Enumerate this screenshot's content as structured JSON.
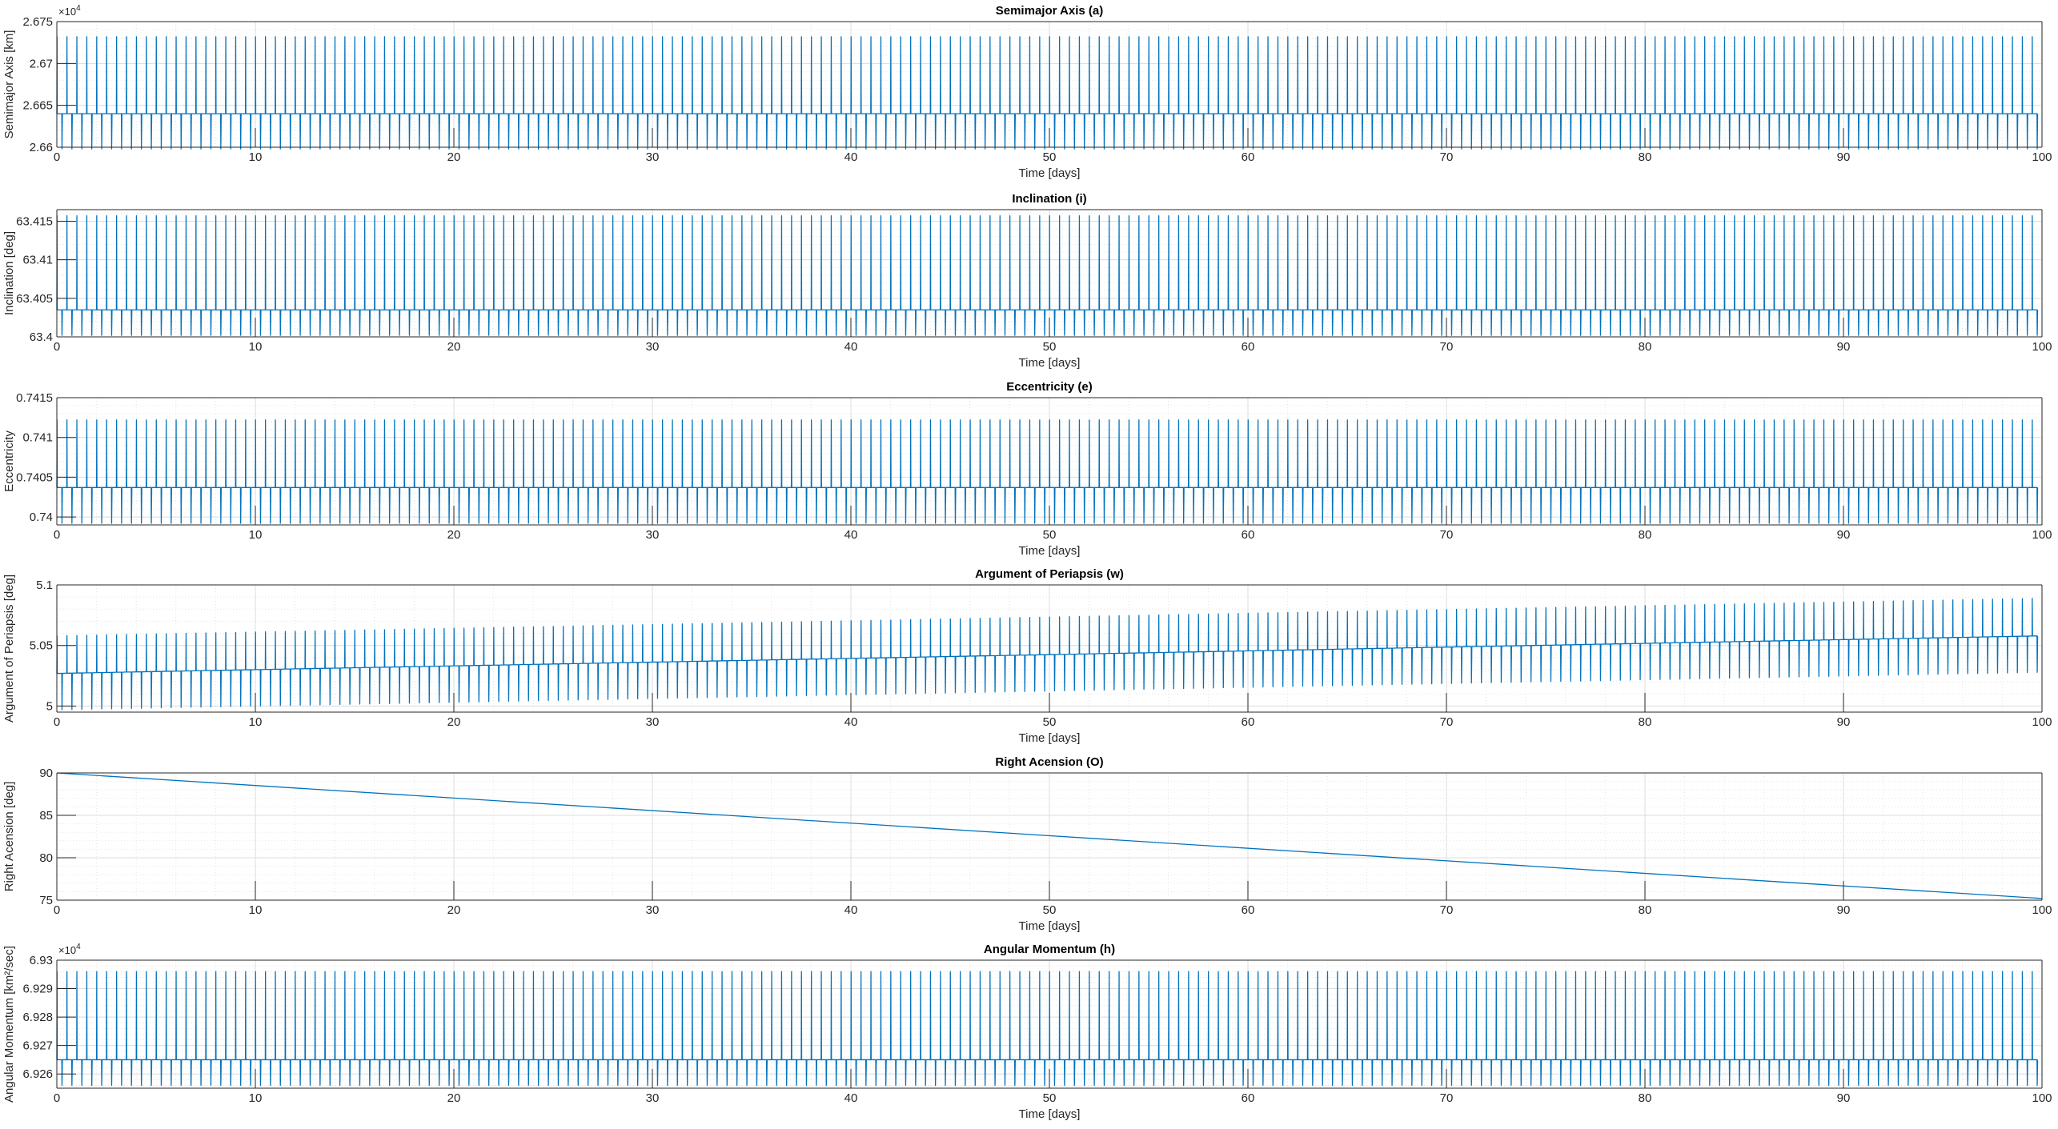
{
  "chart_data": [
    {
      "type": "line",
      "title": "Semimajor Axis (a)",
      "xlabel": "Time [days]",
      "ylabel": "Semimajor Axis [km]",
      "xlim": [
        0,
        100
      ],
      "ylim": [
        26600,
        26750
      ],
      "xticks": [
        0,
        10,
        20,
        30,
        40,
        50,
        60,
        70,
        80,
        90,
        100
      ],
      "yticks": [
        2.66,
        2.665,
        2.67,
        2.675
      ],
      "exponent": "4",
      "grid": true,
      "series": [
        {
          "color": "#0072bd",
          "pattern": "oscillation",
          "cycles": 200,
          "baseline_start": 26640,
          "baseline_end": 26640,
          "peak_start": 26732,
          "peak_end": 26732,
          "trough_start": 26598,
          "trough_end": 26598
        }
      ]
    },
    {
      "type": "line",
      "title": "Inclination (i)",
      "xlabel": "Time [days]",
      "ylabel": "Inclination [deg]",
      "xlim": [
        0,
        100
      ],
      "ylim": [
        63.4,
        63.4165
      ],
      "xticks": [
        0,
        10,
        20,
        30,
        40,
        50,
        60,
        70,
        80,
        90,
        100
      ],
      "yticks": [
        63.4,
        63.405,
        63.41,
        63.415
      ],
      "grid": true,
      "series": [
        {
          "color": "#0072bd",
          "pattern": "oscillation",
          "cycles": 200,
          "baseline_start": 63.4035,
          "baseline_end": 63.4035,
          "peak_start": 63.4157,
          "peak_end": 63.4157,
          "trough_start": 63.4002,
          "trough_end": 63.4002
        }
      ]
    },
    {
      "type": "line",
      "title": "Eccentricity (e)",
      "xlabel": "Time [days]",
      "ylabel": "Eccentricity",
      "xlim": [
        0,
        100
      ],
      "ylim": [
        0.7399,
        0.7415
      ],
      "xticks": [
        0,
        10,
        20,
        30,
        40,
        50,
        60,
        70,
        80,
        90,
        100
      ],
      "yticks": [
        0.74,
        0.7405,
        0.741,
        0.7415
      ],
      "grid": true,
      "series": [
        {
          "color": "#0072bd",
          "pattern": "oscillation",
          "cycles": 200,
          "baseline_start": 0.74037,
          "baseline_end": 0.74037,
          "peak_start": 0.74122,
          "peak_end": 0.74122,
          "trough_start": 0.73992,
          "trough_end": 0.73992
        }
      ]
    },
    {
      "type": "line",
      "title": "Argument of Periapsis (w)",
      "xlabel": "Time [days]",
      "ylabel": "Argument of Periapsis [deg]",
      "xlim": [
        0,
        100
      ],
      "ylim": [
        4.995,
        5.1
      ],
      "xticks": [
        0,
        10,
        20,
        30,
        40,
        50,
        60,
        70,
        80,
        90,
        100
      ],
      "yticks": [
        5,
        5.05,
        5.1
      ],
      "grid": true,
      "series": [
        {
          "color": "#0072bd",
          "pattern": "oscillation",
          "cycles": 200,
          "baseline_start": 5.027,
          "baseline_end": 5.058,
          "peak_start": 5.058,
          "peak_end": 5.089,
          "trough_start": 4.997,
          "trough_end": 5.028
        }
      ]
    },
    {
      "type": "line",
      "title": "Right Acension (O)",
      "xlabel": "Time [days]",
      "ylabel": "Right Acension [deg]",
      "xlim": [
        0,
        100
      ],
      "ylim": [
        75,
        90
      ],
      "xticks": [
        0,
        10,
        20,
        30,
        40,
        50,
        60,
        70,
        80,
        90,
        100
      ],
      "yticks": [
        75,
        80,
        85,
        90
      ],
      "grid": true,
      "series": [
        {
          "color": "#0072bd",
          "pattern": "linear",
          "x": [
            0,
            100
          ],
          "y": [
            90,
            75.2
          ]
        }
      ]
    },
    {
      "type": "line",
      "title": "Angular Momentum (h)",
      "xlabel": "Time [days]",
      "ylabel": "Angular Momentum [km²/sec]",
      "xlim": [
        0,
        100
      ],
      "ylim": [
        69255,
        69300
      ],
      "xticks": [
        0,
        10,
        20,
        30,
        40,
        50,
        60,
        70,
        80,
        90,
        100
      ],
      "yticks": [
        6.926,
        6.927,
        6.928,
        6.929,
        6.93
      ],
      "exponent": "4",
      "grid": true,
      "series": [
        {
          "color": "#0072bd",
          "pattern": "oscillation",
          "cycles": 200,
          "baseline_start": 69265,
          "baseline_end": 69265,
          "peak_start": 69296,
          "peak_end": 69296,
          "trough_start": 69256,
          "trough_end": 69256
        }
      ]
    }
  ]
}
